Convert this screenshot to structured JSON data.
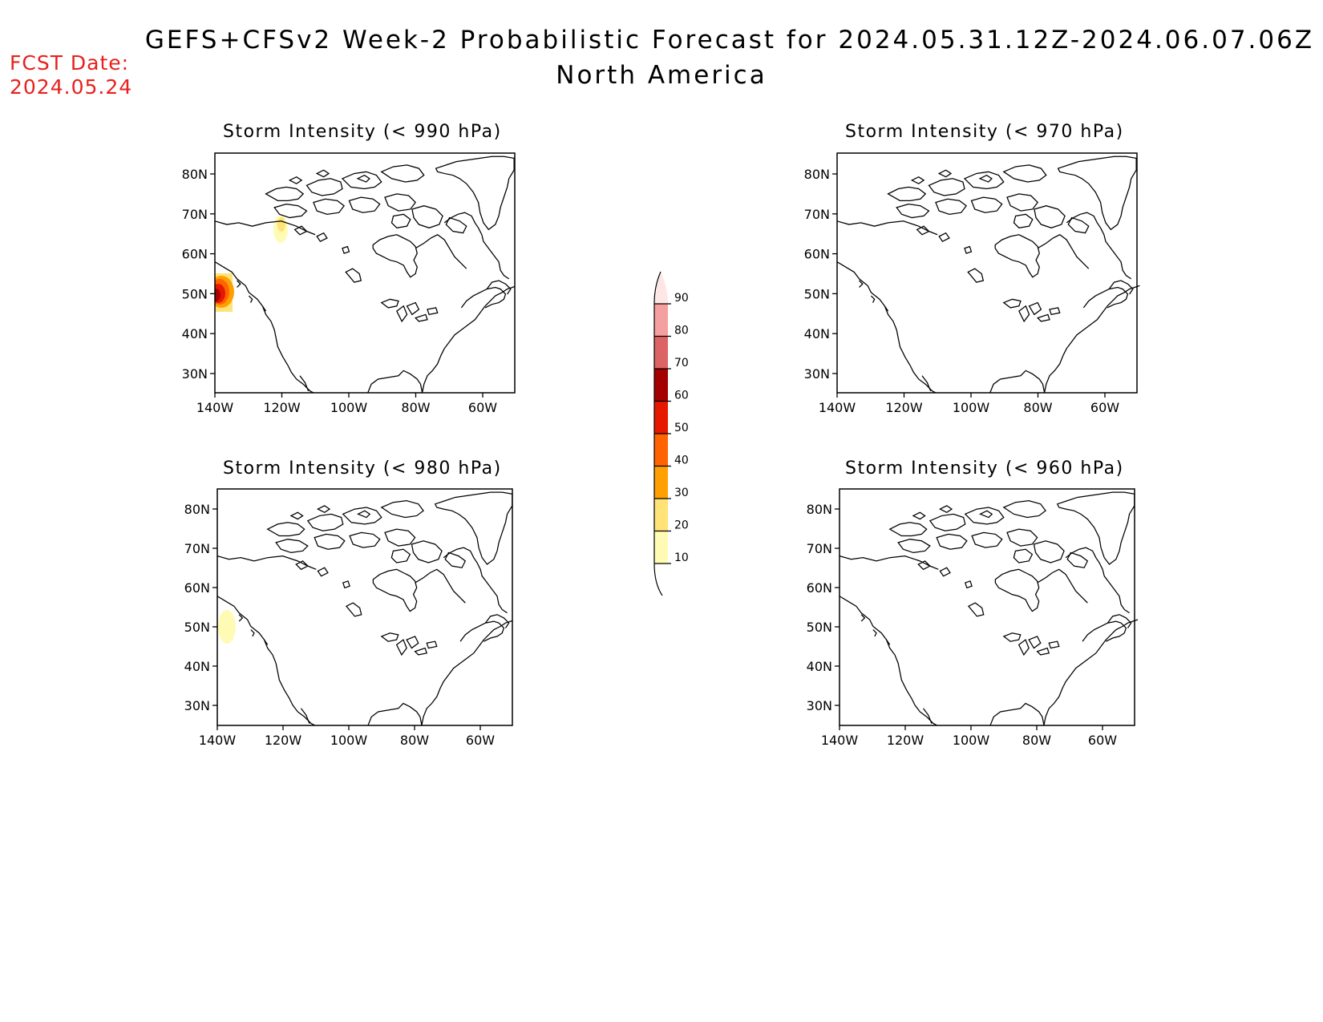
{
  "header": {
    "title": "GEFS+CFSv2 Week-2 Probabilistic Forecast for 2024.05.31.12Z-2024.06.07.06Z",
    "region": "North America",
    "fcst_label": "FCST Date:",
    "fcst_date": "2024.05.24"
  },
  "panels": [
    {
      "title": "Storm Intensity (< 990 hPa)"
    },
    {
      "title": "Storm Intensity (< 970 hPa)"
    },
    {
      "title": "Storm Intensity (< 980 hPa)"
    },
    {
      "title": "Storm Intensity (< 960 hPa)"
    }
  ],
  "axes": {
    "lat_labels": [
      "80N",
      "70N",
      "60N",
      "50N",
      "40N",
      "30N"
    ],
    "lon_labels": [
      "140W",
      "120W",
      "100W",
      "80W",
      "60W"
    ]
  },
  "colorbar": {
    "levels": [
      "10",
      "20",
      "30",
      "40",
      "50",
      "60",
      "70",
      "80",
      "90"
    ],
    "colors": [
      "#fffbb5",
      "#ffe278",
      "#ffa000",
      "#ff6400",
      "#e61900",
      "#a50000",
      "#dc6464",
      "#f5a0a0",
      "#ffe6e6"
    ]
  }
}
